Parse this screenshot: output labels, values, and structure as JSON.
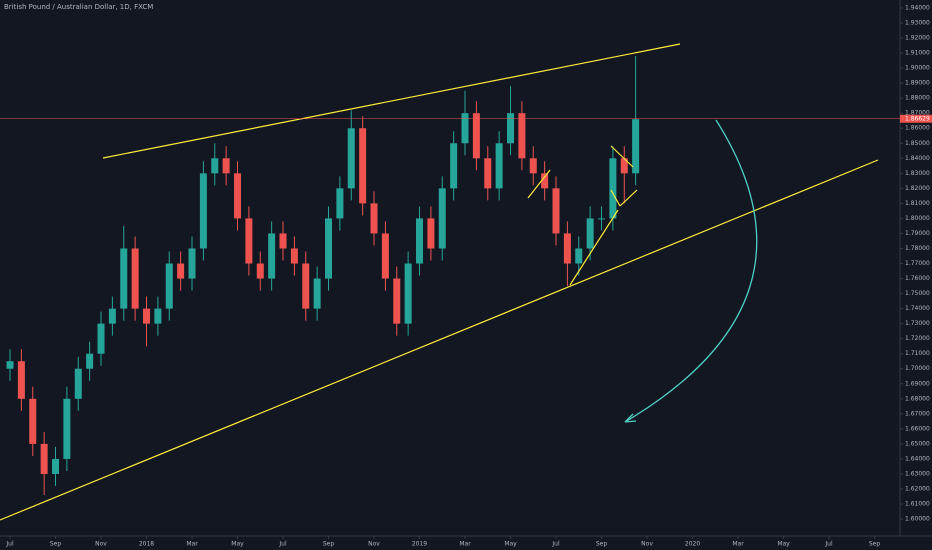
{
  "chart_data": {
    "type": "candlestick",
    "title": "British Pound / Australian Dollar, 1D, FXCM",
    "x": [
      0,
      0.5,
      1,
      1.5,
      2,
      2.5,
      3,
      3.5,
      4,
      4.5,
      5,
      5.5,
      6,
      6.5,
      7,
      7.5,
      8,
      8.5,
      9,
      9.5,
      10,
      10.5,
      11,
      11.5,
      12,
      12.5,
      13,
      13.5,
      14,
      14.5,
      15,
      15.5,
      16,
      16.5,
      17,
      17.5,
      18,
      18.5,
      19,
      19.5,
      20,
      20.5,
      21,
      21.5,
      22,
      22.5,
      23,
      23.5,
      24,
      24.5,
      25,
      25.5,
      26,
      26.5,
      27,
      27.5
    ],
    "open": [
      1.7,
      1.705,
      1.68,
      1.65,
      1.63,
      1.64,
      1.68,
      1.7,
      1.71,
      1.73,
      1.74,
      1.78,
      1.74,
      1.73,
      1.74,
      1.77,
      1.76,
      1.78,
      1.83,
      1.84,
      1.83,
      1.8,
      1.77,
      1.76,
      1.79,
      1.78,
      1.77,
      1.74,
      1.76,
      1.8,
      1.82,
      1.86,
      1.81,
      1.79,
      1.76,
      1.73,
      1.77,
      1.8,
      1.78,
      1.82,
      1.85,
      1.87,
      1.84,
      1.82,
      1.85,
      1.87,
      1.84,
      1.83,
      1.82,
      1.79,
      1.77,
      1.78,
      1.8,
      1.8,
      1.84,
      1.83
    ],
    "high": [
      1.713,
      1.713,
      1.688,
      1.658,
      1.648,
      1.688,
      1.708,
      1.718,
      1.738,
      1.748,
      1.795,
      1.788,
      1.748,
      1.748,
      1.778,
      1.778,
      1.788,
      1.838,
      1.85,
      1.848,
      1.838,
      1.808,
      1.778,
      1.798,
      1.798,
      1.788,
      1.778,
      1.768,
      1.808,
      1.828,
      1.872,
      1.868,
      1.818,
      1.798,
      1.768,
      1.778,
      1.808,
      1.808,
      1.828,
      1.858,
      1.885,
      1.878,
      1.848,
      1.858,
      1.888,
      1.878,
      1.848,
      1.838,
      1.828,
      1.798,
      1.788,
      1.808,
      1.808,
      1.848,
      1.848,
      1.908
    ],
    "low": [
      1.692,
      1.672,
      1.642,
      1.616,
      1.622,
      1.632,
      1.672,
      1.692,
      1.702,
      1.722,
      1.732,
      1.732,
      1.715,
      1.722,
      1.732,
      1.752,
      1.752,
      1.772,
      1.822,
      1.822,
      1.792,
      1.762,
      1.752,
      1.752,
      1.772,
      1.762,
      1.732,
      1.732,
      1.752,
      1.792,
      1.812,
      1.802,
      1.782,
      1.752,
      1.722,
      1.722,
      1.762,
      1.772,
      1.772,
      1.812,
      1.842,
      1.832,
      1.812,
      1.812,
      1.842,
      1.832,
      1.822,
      1.812,
      1.782,
      1.755,
      1.762,
      1.772,
      1.792,
      1.792,
      1.81,
      1.822
    ],
    "close": [
      1.705,
      1.68,
      1.65,
      1.63,
      1.64,
      1.68,
      1.7,
      1.71,
      1.73,
      1.74,
      1.78,
      1.74,
      1.73,
      1.74,
      1.77,
      1.76,
      1.78,
      1.83,
      1.84,
      1.83,
      1.8,
      1.77,
      1.76,
      1.79,
      1.78,
      1.77,
      1.74,
      1.76,
      1.8,
      1.82,
      1.86,
      1.81,
      1.79,
      1.76,
      1.73,
      1.77,
      1.8,
      1.78,
      1.82,
      1.85,
      1.87,
      1.84,
      1.82,
      1.85,
      1.87,
      1.84,
      1.83,
      1.82,
      1.79,
      1.77,
      1.78,
      1.8,
      1.8,
      1.84,
      1.83,
      1.866
    ],
    "up_color": "#26a69a",
    "down_color": "#ef5350",
    "last_price": {
      "value": 1.8663,
      "label": "1.86629"
    },
    "xlim": [
      -0.44,
      39.12
    ],
    "xticks": [
      {
        "value": 0,
        "label": "Jul"
      },
      {
        "value": 2,
        "label": "Sep"
      },
      {
        "value": 4,
        "label": "Nov"
      },
      {
        "value": 6,
        "label": "2018"
      },
      {
        "value": 8,
        "label": "Mar"
      },
      {
        "value": 10,
        "label": "May"
      },
      {
        "value": 12,
        "label": "Jul"
      },
      {
        "value": 14,
        "label": "Sep"
      },
      {
        "value": 16,
        "label": "Nov"
      },
      {
        "value": 18,
        "label": "2019"
      },
      {
        "value": 20,
        "label": "Mar"
      },
      {
        "value": 22,
        "label": "May"
      },
      {
        "value": 24,
        "label": "Jul"
      },
      {
        "value": 26,
        "label": "Sep"
      },
      {
        "value": 28,
        "label": "Nov"
      },
      {
        "value": 30,
        "label": "2020"
      },
      {
        "value": 32,
        "label": "Mar"
      },
      {
        "value": 34,
        "label": "May"
      },
      {
        "value": 36,
        "label": "Jul"
      },
      {
        "value": 38,
        "label": "Sep"
      }
    ],
    "ylim": [
      1.5894,
      1.9453
    ],
    "yticks": [
      {
        "value": 1.6,
        "label": "1.60000"
      },
      {
        "value": 1.61,
        "label": "1.61000"
      },
      {
        "value": 1.62,
        "label": "1.62000"
      },
      {
        "value": 1.63,
        "label": "1.63000"
      },
      {
        "value": 1.64,
        "label": "1.64000"
      },
      {
        "value": 1.65,
        "label": "1.65000"
      },
      {
        "value": 1.66,
        "label": "1.66000"
      },
      {
        "value": 1.67,
        "label": "1.67000"
      },
      {
        "value": 1.68,
        "label": "1.68000"
      },
      {
        "value": 1.69,
        "label": "1.69000"
      },
      {
        "value": 1.7,
        "label": "1.70000"
      },
      {
        "value": 1.71,
        "label": "1.71000"
      },
      {
        "value": 1.72,
        "label": "1.72000"
      },
      {
        "value": 1.73,
        "label": "1.73000"
      },
      {
        "value": 1.74,
        "label": "1.74000"
      },
      {
        "value": 1.75,
        "label": "1.75000"
      },
      {
        "value": 1.76,
        "label": "1.76000"
      },
      {
        "value": 1.77,
        "label": "1.77000"
      },
      {
        "value": 1.78,
        "label": "1.78000"
      },
      {
        "value": 1.79,
        "label": "1.79000"
      },
      {
        "value": 1.8,
        "label": "1.80000"
      },
      {
        "value": 1.81,
        "label": "1.81000"
      },
      {
        "value": 1.82,
        "label": "1.82000"
      },
      {
        "value": 1.83,
        "label": "1.83000"
      },
      {
        "value": 1.84,
        "label": "1.84000"
      },
      {
        "value": 1.85,
        "label": "1.85000"
      },
      {
        "value": 1.86,
        "label": "1.86000"
      },
      {
        "value": 1.87,
        "label": "1.87000"
      },
      {
        "value": 1.88,
        "label": "1.88000"
      },
      {
        "value": 1.89,
        "label": "1.89000"
      },
      {
        "value": 1.9,
        "label": "1.90000"
      },
      {
        "value": 1.91,
        "label": "1.91000"
      },
      {
        "value": 1.92,
        "label": "1.92000"
      },
      {
        "value": 1.93,
        "label": "1.93000"
      },
      {
        "value": 1.94,
        "label": "1.94000"
      }
    ]
  }
}
